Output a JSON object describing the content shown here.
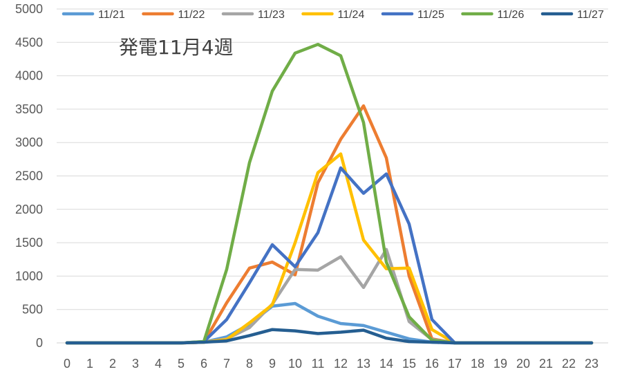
{
  "chart_data": {
    "type": "line",
    "title": "発電11月4週",
    "xlabel": "",
    "ylabel": "",
    "x": [
      0,
      1,
      2,
      3,
      4,
      5,
      6,
      7,
      8,
      9,
      10,
      11,
      12,
      13,
      14,
      15,
      16,
      17,
      18,
      19,
      20,
      21,
      22,
      23
    ],
    "ylim": [
      0,
      5000
    ],
    "yticks": [
      0,
      500,
      1000,
      1500,
      2000,
      2500,
      3000,
      3500,
      4000,
      4500,
      5000
    ],
    "grid": "horizontal",
    "legend_position": "top",
    "series": [
      {
        "name": "11/21",
        "color": "#5B9BD5",
        "values": [
          0,
          0,
          0,
          0,
          0,
          0,
          10,
          90,
          280,
          550,
          590,
          400,
          290,
          260,
          160,
          60,
          10,
          0,
          0,
          0,
          0,
          0,
          0,
          0
        ]
      },
      {
        "name": "11/22",
        "color": "#ED7D31",
        "values": [
          0,
          0,
          0,
          0,
          0,
          0,
          10,
          600,
          1120,
          1210,
          1020,
          2400,
          3050,
          3550,
          2770,
          1000,
          60,
          0,
          0,
          0,
          0,
          0,
          0,
          0
        ]
      },
      {
        "name": "11/23",
        "color": "#A5A5A5",
        "values": [
          0,
          0,
          0,
          0,
          0,
          0,
          10,
          60,
          230,
          580,
          1100,
          1090,
          1290,
          830,
          1400,
          320,
          50,
          0,
          0,
          0,
          0,
          0,
          0,
          0
        ]
      },
      {
        "name": "11/24",
        "color": "#FFC000",
        "values": [
          0,
          0,
          0,
          0,
          0,
          0,
          10,
          50,
          300,
          570,
          1500,
          2550,
          2830,
          1540,
          1110,
          1120,
          200,
          0,
          0,
          0,
          0,
          0,
          0,
          0
        ]
      },
      {
        "name": "11/25",
        "color": "#4472C4",
        "values": [
          0,
          0,
          0,
          0,
          0,
          0,
          20,
          350,
          900,
          1470,
          1140,
          1650,
          2620,
          2240,
          2530,
          1780,
          350,
          0,
          0,
          0,
          0,
          0,
          0,
          0
        ]
      },
      {
        "name": "11/26",
        "color": "#70AD47",
        "values": [
          0,
          0,
          0,
          0,
          0,
          0,
          20,
          1100,
          2700,
          3770,
          4340,
          4470,
          4300,
          3300,
          1210,
          390,
          40,
          0,
          0,
          0,
          0,
          0,
          0,
          0
        ]
      },
      {
        "name": "11/27",
        "color": "#255E91",
        "values": [
          0,
          0,
          0,
          0,
          0,
          0,
          10,
          30,
          110,
          200,
          180,
          140,
          160,
          190,
          70,
          20,
          10,
          0,
          0,
          0,
          0,
          0,
          0,
          0
        ]
      }
    ]
  }
}
